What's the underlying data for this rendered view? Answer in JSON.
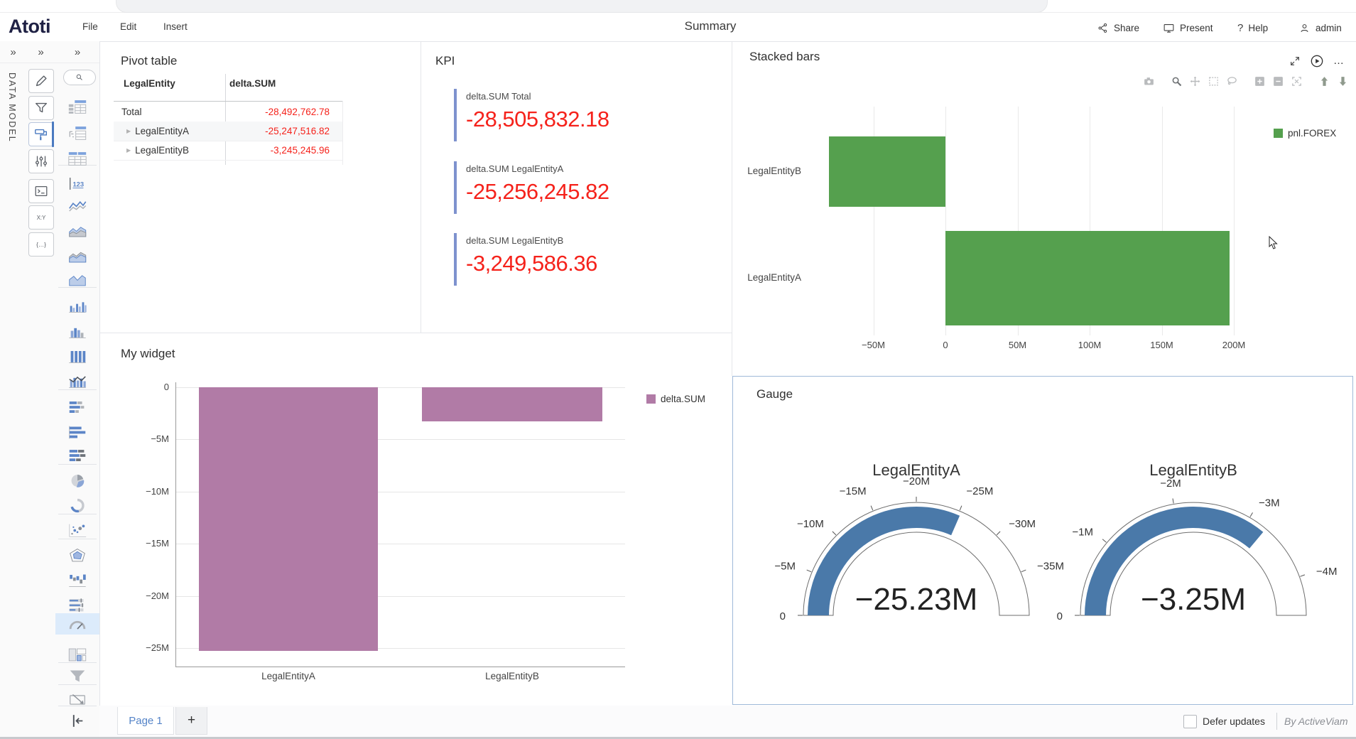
{
  "header": {
    "logo": "Atoti",
    "menus": [
      "File",
      "Edit",
      "Insert"
    ],
    "title": "Summary",
    "actions": [
      {
        "label": "Share",
        "icon": "share-icon"
      },
      {
        "label": "Present",
        "icon": "present-icon"
      },
      {
        "label": "Help",
        "icon": "help-icon",
        "glyph": "?"
      },
      {
        "label": "admin",
        "icon": "user-icon"
      }
    ]
  },
  "sidebar": {
    "rail_label": "DATA MODEL",
    "expand_glyph": "»",
    "tools": [
      {
        "name": "edit"
      },
      {
        "name": "filters"
      },
      {
        "name": "styles",
        "selected": true
      },
      {
        "name": "query"
      },
      {
        "name": "console"
      },
      {
        "name": "axes"
      },
      {
        "name": "mdx"
      }
    ],
    "widget_types": [
      {
        "name": "table"
      },
      {
        "name": "pivot-table"
      },
      {
        "name": "featured-values-table"
      },
      {
        "name": "kpi-number"
      },
      {
        "name": "line-chart"
      },
      {
        "name": "area-chart"
      },
      {
        "name": "stacked-area-chart"
      },
      {
        "name": "filled-area-chart"
      },
      {
        "name": "clustered-column-chart"
      },
      {
        "name": "column-histogram"
      },
      {
        "name": "column-chart"
      },
      {
        "name": "combo-chart"
      },
      {
        "name": "stacked-bar-chart"
      },
      {
        "name": "bar-chart"
      },
      {
        "name": "clustered-bar-chart"
      },
      {
        "name": "pie-chart"
      },
      {
        "name": "donut-chart"
      },
      {
        "name": "scatter-plot"
      },
      {
        "name": "radar-chart"
      },
      {
        "name": "waterfall-chart"
      },
      {
        "name": "bullet-chart"
      },
      {
        "name": "gauge",
        "selected": true
      },
      {
        "name": "treemap"
      },
      {
        "name": "filter"
      },
      {
        "name": "slideshow"
      },
      {
        "name": "collapse-panel"
      }
    ]
  },
  "pivot": {
    "title": "Pivot table",
    "expand_glyph": "▶",
    "columns": [
      "LegalEntity",
      "delta.SUM"
    ],
    "rows": [
      {
        "label": "Total",
        "value": "-28,492,762.78",
        "indent": false
      },
      {
        "label": "LegalEntityA",
        "value": "-25,247,516.82",
        "indent": true
      },
      {
        "label": "LegalEntityB",
        "value": "-3,245,245.96",
        "indent": true
      }
    ]
  },
  "kpi": {
    "title": "KPI",
    "items": [
      {
        "label": "delta.SUM Total",
        "value": "-28,505,832.18"
      },
      {
        "label": "delta.SUM LegalEntityA",
        "value": "-25,256,245.82"
      },
      {
        "label": "delta.SUM LegalEntityB",
        "value": "-3,249,586.36"
      }
    ]
  },
  "stacked_widget": {
    "controls": [
      {
        "name": "fullscreen"
      },
      {
        "name": "play"
      },
      {
        "name": "more-options",
        "glyph": "…"
      }
    ],
    "modebar": [
      {
        "name": "download-snapshot"
      },
      {
        "name": "zoom",
        "active": true
      },
      {
        "name": "pan"
      },
      {
        "name": "box-select"
      },
      {
        "name": "lasso-select"
      },
      {
        "name": "zoom-in"
      },
      {
        "name": "zoom-out"
      },
      {
        "name": "autoscale"
      },
      {
        "name": "move-up"
      },
      {
        "name": "move-down"
      }
    ]
  },
  "footer": {
    "page_tab": "Page 1",
    "add_tab": "+",
    "defer_updates": "Defer updates",
    "credit": "By ActiveViam"
  },
  "chart_data": [
    {
      "type": "bar",
      "orientation": "horizontal",
      "title": "Stacked bars",
      "categories": [
        "LegalEntityB",
        "LegalEntityA"
      ],
      "series": [
        {
          "name": "pnl.FOREX",
          "color": "#55a04e",
          "values": [
            -81000000,
            197000000
          ]
        }
      ],
      "x_ticks": [
        {
          "value": -50000000,
          "label": "−50M"
        },
        {
          "value": 0,
          "label": "0"
        },
        {
          "value": 50000000,
          "label": "50M"
        },
        {
          "value": 100000000,
          "label": "100M"
        },
        {
          "value": 150000000,
          "label": "150M"
        },
        {
          "value": 200000000,
          "label": "200M"
        }
      ],
      "xlim": [
        -97000000,
        213000000
      ],
      "legend_position": "top-right",
      "grid": true
    },
    {
      "type": "bar",
      "orientation": "vertical",
      "title": "My widget",
      "categories": [
        "LegalEntityA",
        "LegalEntityB"
      ],
      "series": [
        {
          "name": "delta.SUM",
          "color": "#b17ba6",
          "values": [
            -25247516.82,
            -3245245.96
          ]
        }
      ],
      "y_ticks": [
        {
          "value": 0,
          "label": "0"
        },
        {
          "value": -5000000,
          "label": "−5M"
        },
        {
          "value": -10000000,
          "label": "−10M"
        },
        {
          "value": -15000000,
          "label": "−15M"
        },
        {
          "value": -20000000,
          "label": "−20M"
        },
        {
          "value": -25000000,
          "label": "−25M"
        }
      ],
      "ylim": [
        -26800000,
        0
      ],
      "legend_position": "top-right",
      "grid": true
    },
    {
      "type": "gauge",
      "title": "Gauge",
      "color": "#4a79a9",
      "gauges": [
        {
          "label": "LegalEntityA",
          "value": -25230000,
          "display": "−25.23M",
          "min": 0,
          "max": -40000000,
          "ticks": [
            {
              "value": 0,
              "label": "0"
            },
            {
              "value": -5000000,
              "label": "−5M"
            },
            {
              "value": -10000000,
              "label": "−10M"
            },
            {
              "value": -15000000,
              "label": "−15M"
            },
            {
              "value": -20000000,
              "label": "−20M"
            },
            {
              "value": -25000000,
              "label": "−25M"
            },
            {
              "value": -30000000,
              "label": "−30M"
            },
            {
              "value": -35000000,
              "label": "−35M"
            }
          ]
        },
        {
          "label": "LegalEntityB",
          "value": -3250000,
          "display": "−3.25M",
          "min": 0,
          "max": -4500000,
          "ticks": [
            {
              "value": 0,
              "label": "0"
            },
            {
              "value": -1000000,
              "label": "−1M"
            },
            {
              "value": -2000000,
              "label": "−2M"
            },
            {
              "value": -3000000,
              "label": "−3M"
            },
            {
              "value": -4000000,
              "label": "−4M"
            }
          ]
        }
      ]
    }
  ]
}
